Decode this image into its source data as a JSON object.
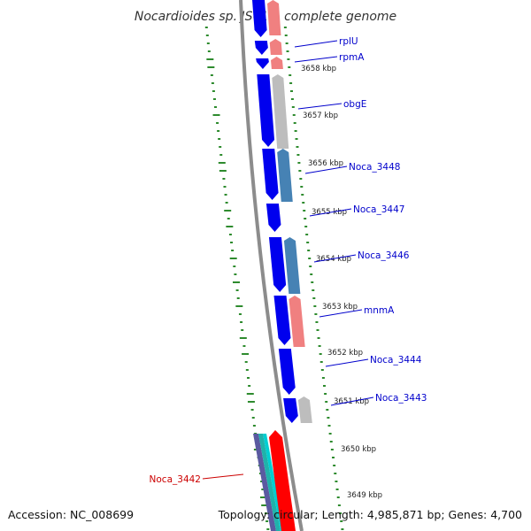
{
  "title": "Nocardioides sp. JS614, complete genome",
  "footer": {
    "accession": "Accession: NC_008699",
    "summary": "Topology: circular; Length: 4,985,871 bp; Genes: 4,700"
  },
  "colors": {
    "forward_cds": "#0000ee",
    "reverse_pink": "#f08080",
    "reverse_grey": "#bdbdbd",
    "reverse_steel": "#4682b4",
    "highlight_red": "#ff0000",
    "teal": "#20b2aa",
    "label_blue": "#0000cc",
    "label_red": "#cc0000",
    "gc_dots": "#2e8b2e"
  },
  "ticks": [
    "3658 kbp",
    "3657 kbp",
    "3656 kbp",
    "3655 kbp",
    "3654 kbp",
    "3653 kbp",
    "3652 kbp",
    "3651 kbp",
    "3650 kbp",
    "3649 kbp"
  ],
  "genes": [
    {
      "name": "rplU",
      "color": "blue"
    },
    {
      "name": "rpmA",
      "color": "blue"
    },
    {
      "name": "obgE",
      "color": "blue"
    },
    {
      "name": "Noca_3448",
      "color": "blue"
    },
    {
      "name": "Noca_3447",
      "color": "blue"
    },
    {
      "name": "Noca_3446",
      "color": "blue"
    },
    {
      "name": "mnmA",
      "color": "blue"
    },
    {
      "name": "Noca_3444",
      "color": "blue"
    },
    {
      "name": "Noca_3443",
      "color": "blue"
    },
    {
      "name": "Noca_3442",
      "color": "red"
    }
  ]
}
